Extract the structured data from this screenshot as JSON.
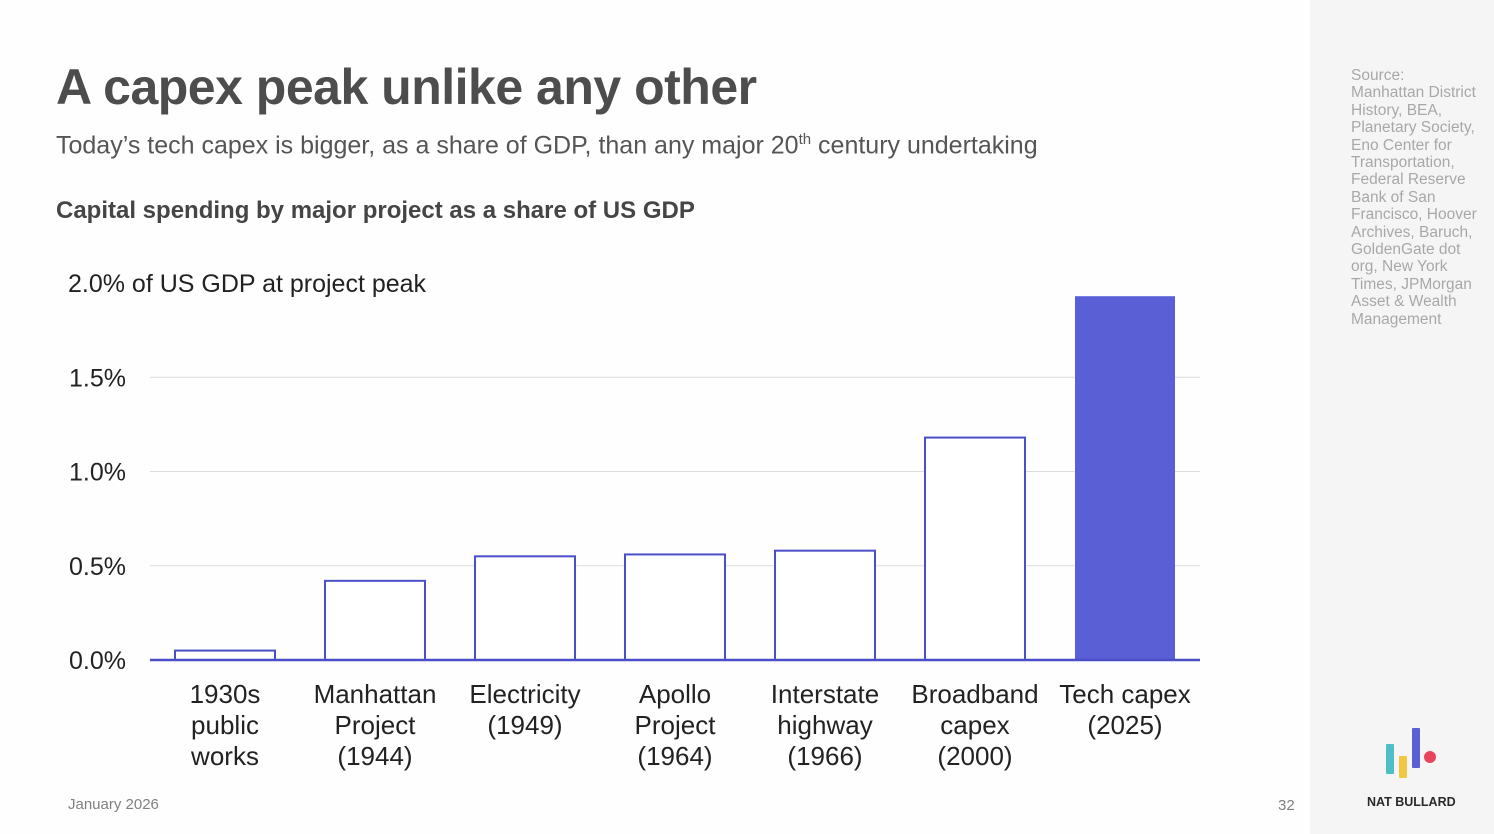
{
  "slide": {
    "title": "A capex peak unlike any other",
    "subtitle_main": "Today’s tech capex is bigger, as a share of GDP, than any major 20",
    "subtitle_sup": "th",
    "subtitle_end": " century undertaking",
    "chart_heading": "Capital spending by major project as a share of US GDP",
    "source": "Source: Manhattan District History, BEA, Planetary Society, Eno Center for Transportation, Federal Reserve Bank of San Francisco, Hoover Archives, Baruch, GoldenGate dot org, New York Times, JPMorgan Asset & Wealth Management",
    "date": "January 2026",
    "page_number": "32",
    "brand": "NAT BULLARD"
  },
  "colors": {
    "accent": "#5a5fd6",
    "bar_outline": "#4a4fc7",
    "gridline": "#dcdcdc",
    "text": "#222222",
    "logo_teal": "#4fbfc7",
    "logo_yellow": "#f2c744",
    "logo_purple": "#5a5fd6",
    "logo_red": "#e8455a"
  },
  "chart_data": {
    "type": "bar",
    "title": "Capital spending by major project as a share of US GDP",
    "ylabel": "% of US GDP at project peak",
    "ylim": [
      0,
      2.0
    ],
    "grid": true,
    "y_ticks": [
      {
        "value": 0.0,
        "label": "0.0%"
      },
      {
        "value": 0.5,
        "label": "0.5%"
      },
      {
        "value": 1.0,
        "label": "1.0%"
      },
      {
        "value": 1.5,
        "label": "1.5%"
      },
      {
        "value": 2.0,
        "label": "2.0% of US GDP at project peak"
      }
    ],
    "categories": [
      [
        "1930s",
        "public",
        "works"
      ],
      [
        "Manhattan",
        "Project",
        "(1944)"
      ],
      [
        "Electricity",
        "(1949)"
      ],
      [
        "Apollo",
        "Project",
        "(1964)"
      ],
      [
        "Interstate",
        "highway",
        "(1966)"
      ],
      [
        "Broadband",
        "capex",
        "(2000)"
      ],
      [
        "Tech capex",
        "(2025)"
      ]
    ],
    "values": [
      0.05,
      0.42,
      0.55,
      0.56,
      0.58,
      1.18,
      1.93
    ],
    "highlight_index": 6
  }
}
